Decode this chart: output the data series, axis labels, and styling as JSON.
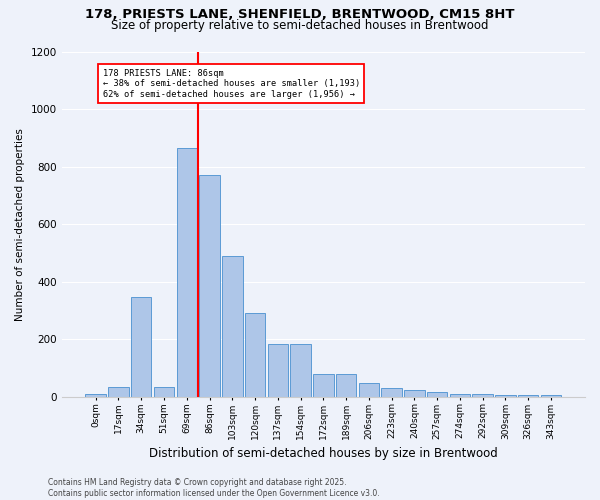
{
  "title_line1": "178, PRIESTS LANE, SHENFIELD, BRENTWOOD, CM15 8HT",
  "title_line2": "Size of property relative to semi-detached houses in Brentwood",
  "xlabel": "Distribution of semi-detached houses by size in Brentwood",
  "ylabel": "Number of semi-detached properties",
  "bar_labels": [
    "0sqm",
    "17sqm",
    "34sqm",
    "51sqm",
    "69sqm",
    "86sqm",
    "103sqm",
    "120sqm",
    "137sqm",
    "154sqm",
    "172sqm",
    "189sqm",
    "206sqm",
    "223sqm",
    "240sqm",
    "257sqm",
    "274sqm",
    "292sqm",
    "309sqm",
    "326sqm",
    "343sqm"
  ],
  "bar_values": [
    8,
    35,
    345,
    35,
    865,
    770,
    490,
    290,
    185,
    185,
    80,
    80,
    48,
    30,
    22,
    15,
    10,
    8,
    5,
    5,
    5
  ],
  "bar_color": "#aec6e8",
  "bar_edge_color": "#5b9bd5",
  "vline_x_index": 4,
  "vline_color": "red",
  "annotation_text": "178 PRIESTS LANE: 86sqm\n← 38% of semi-detached houses are smaller (1,193)\n62% of semi-detached houses are larger (1,956) →",
  "annotation_box_color": "white",
  "annotation_box_edge_color": "red",
  "footnote": "Contains HM Land Registry data © Crown copyright and database right 2025.\nContains public sector information licensed under the Open Government Licence v3.0.",
  "ylim": [
    0,
    1200
  ],
  "yticks": [
    0,
    200,
    400,
    600,
    800,
    1000,
    1200
  ],
  "background_color": "#eef2fa",
  "plot_background": "#eef2fa",
  "grid_color": "#ffffff",
  "title1_fontsize": 9.5,
  "title2_fontsize": 8.5,
  "ylabel_fontsize": 7.5,
  "xlabel_fontsize": 8.5,
  "footnote_fontsize": 5.5
}
